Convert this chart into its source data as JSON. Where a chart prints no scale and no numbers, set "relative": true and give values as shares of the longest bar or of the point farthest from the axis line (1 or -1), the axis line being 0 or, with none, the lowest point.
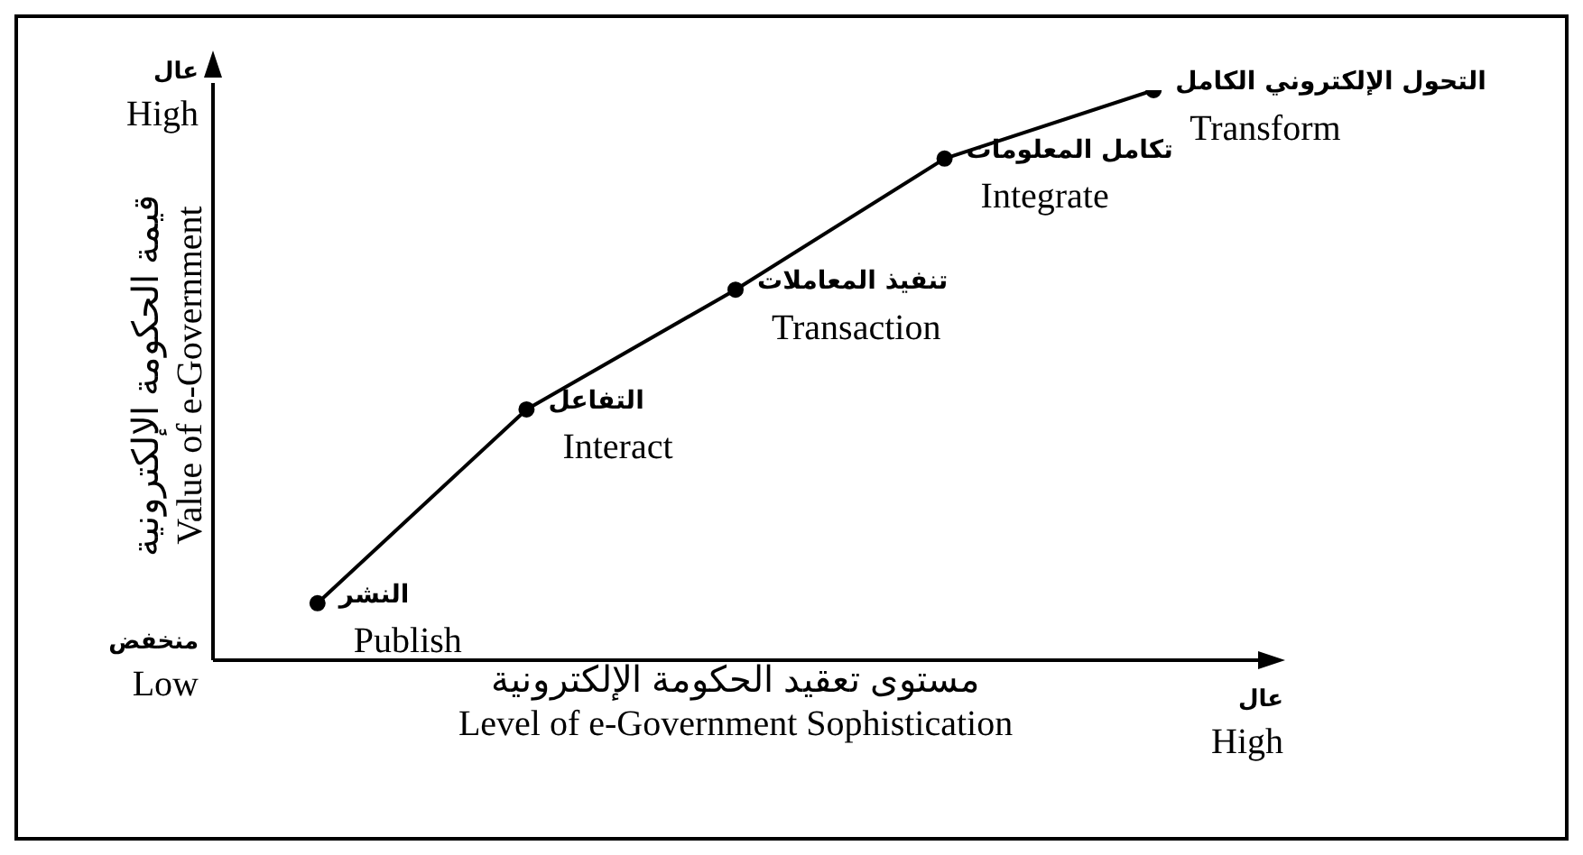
{
  "chart_data": {
    "type": "line",
    "relative": true,
    "xlabel": "مستوى تعقيد الحكومة الإلكترونية\nLevel of e-Government Sophistication",
    "ylabel": "قيمة الحكومة الإلكترونية\nValue of e-Government",
    "categories": [
      null,
      null,
      null,
      null,
      null
    ],
    "series": [
      {
        "color": "#000000",
        "values": [
          0.1,
          0.44,
          0.65,
          0.88,
          1
        ]
      }
    ],
    "marker": "circle",
    "line_style": "solid",
    "annotations": [
      "عال\nHigh",
      "منخفض\nLow",
      "عال\nHigh",
      "النشر\nPublish",
      "التفاعل\nInteract",
      "تنفيذ المعاملات\nTransaction",
      "تكامل المعلومات\nIntegrate",
      "التحول الإلكتروني الكامل\nTransform"
    ]
  }
}
